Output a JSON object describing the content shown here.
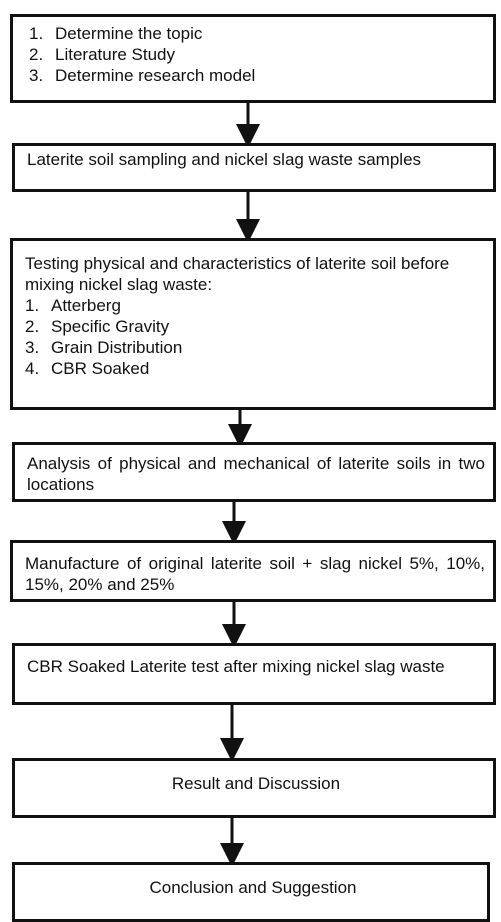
{
  "nodes": [
    {
      "items": [
        {
          "number": "1.",
          "text": "Determine the topic"
        },
        {
          "number": "2.",
          "text": "Literature Study"
        },
        {
          "number": "3.",
          "text": "Determine research model"
        }
      ]
    },
    {
      "text": "Laterite soil sampling and nickel slag waste samples"
    },
    {
      "text": "Testing physical and characteristics of laterite soil before mixing nickel slag waste:",
      "items": [
        {
          "number": "1.",
          "text": "Atterberg"
        },
        {
          "number": "2.",
          "text": "Specific Gravity"
        },
        {
          "number": "3.",
          "text": "Grain Distribution"
        },
        {
          "number": "4.",
          "text": "CBR Soaked"
        }
      ]
    },
    {
      "text": "Analysis of physical and mechanical of laterite soils in two locations"
    },
    {
      "text": "Manufacture of original laterite soil + slag nickel 5%, 10%, 15%, 20% and 25%"
    },
    {
      "text": "CBR Soaked Laterite test after mixing nickel slag waste"
    },
    {
      "text": "Result and Discussion"
    },
    {
      "text": "Conclusion and Suggestion"
    }
  ]
}
